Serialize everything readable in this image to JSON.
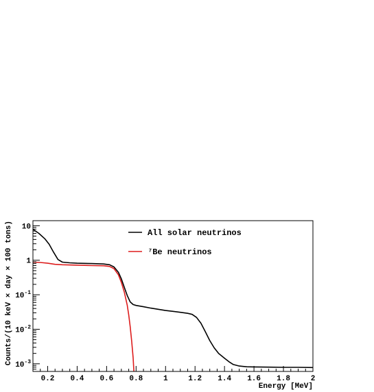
{
  "chart_data": {
    "type": "line",
    "title": "",
    "xlabel": "Energy [MeV]",
    "ylabel": "Counts/(10 keV × day × 100 tons)",
    "xlim": [
      0.1,
      2.0
    ],
    "ylim": [
      0.0006,
      14
    ],
    "yscale": "log",
    "grid": false,
    "legend_position": "top-right",
    "x_ticks": [
      {
        "value": 0.2,
        "label": "0.2"
      },
      {
        "value": 0.4,
        "label": "0.4"
      },
      {
        "value": 0.6,
        "label": "0.6"
      },
      {
        "value": 0.8,
        "label": "0.8"
      },
      {
        "value": 1.0,
        "label": "1"
      },
      {
        "value": 1.2,
        "label": "1.2"
      },
      {
        "value": 1.4,
        "label": "1.4"
      },
      {
        "value": 1.6,
        "label": "1.6"
      },
      {
        "value": 1.8,
        "label": "1.8"
      },
      {
        "value": 2.0,
        "label": "2"
      }
    ],
    "y_ticks": [
      {
        "value": 10,
        "base": "10",
        "exp": ""
      },
      {
        "value": 1,
        "base": "1",
        "exp": ""
      },
      {
        "value": 0.1,
        "base": "10",
        "exp": "-1"
      },
      {
        "value": 0.01,
        "base": "10",
        "exp": "-2"
      },
      {
        "value": 0.001,
        "base": "10",
        "exp": "-3"
      }
    ],
    "series": [
      {
        "name": "All solar neutrinos",
        "color": "#000000",
        "points": [
          [
            0.1,
            7.9
          ],
          [
            0.14,
            6.0
          ],
          [
            0.18,
            4.2
          ],
          [
            0.21,
            2.9
          ],
          [
            0.24,
            1.7
          ],
          [
            0.27,
            1.05
          ],
          [
            0.3,
            0.88
          ],
          [
            0.35,
            0.84
          ],
          [
            0.4,
            0.82
          ],
          [
            0.5,
            0.8
          ],
          [
            0.58,
            0.78
          ],
          [
            0.62,
            0.74
          ],
          [
            0.65,
            0.64
          ],
          [
            0.68,
            0.45
          ],
          [
            0.7,
            0.29
          ],
          [
            0.72,
            0.165
          ],
          [
            0.74,
            0.095
          ],
          [
            0.76,
            0.062
          ],
          [
            0.78,
            0.052
          ],
          [
            0.8,
            0.049
          ],
          [
            0.85,
            0.045
          ],
          [
            0.9,
            0.041
          ],
          [
            0.95,
            0.038
          ],
          [
            1.0,
            0.035
          ],
          [
            1.05,
            0.033
          ],
          [
            1.1,
            0.031
          ],
          [
            1.15,
            0.029
          ],
          [
            1.18,
            0.027
          ],
          [
            1.21,
            0.022
          ],
          [
            1.24,
            0.015
          ],
          [
            1.27,
            0.0085
          ],
          [
            1.3,
            0.0047
          ],
          [
            1.33,
            0.0029
          ],
          [
            1.36,
            0.002
          ],
          [
            1.4,
            0.00145
          ],
          [
            1.43,
            0.00115
          ],
          [
            1.46,
            0.00095
          ],
          [
            1.5,
            0.00086
          ],
          [
            1.55,
            0.00082
          ],
          [
            1.6,
            0.00081
          ],
          [
            1.7,
            0.0008
          ],
          [
            1.8,
            0.00079
          ],
          [
            1.9,
            0.00079
          ],
          [
            2.0,
            0.00078
          ]
        ]
      },
      {
        "name": "⁷Be neutrinos",
        "color": "#dd1c1c",
        "points": [
          [
            0.1,
            0.88
          ],
          [
            0.15,
            0.86
          ],
          [
            0.2,
            0.82
          ],
          [
            0.25,
            0.76
          ],
          [
            0.3,
            0.74
          ],
          [
            0.4,
            0.72
          ],
          [
            0.5,
            0.7
          ],
          [
            0.58,
            0.69
          ],
          [
            0.62,
            0.66
          ],
          [
            0.65,
            0.57
          ],
          [
            0.68,
            0.38
          ],
          [
            0.7,
            0.23
          ],
          [
            0.72,
            0.12
          ],
          [
            0.74,
            0.05
          ],
          [
            0.75,
            0.026
          ],
          [
            0.76,
            0.012
          ],
          [
            0.77,
            0.0045
          ],
          [
            0.78,
            0.0015
          ],
          [
            0.785,
            0.0006
          ]
        ]
      }
    ]
  }
}
